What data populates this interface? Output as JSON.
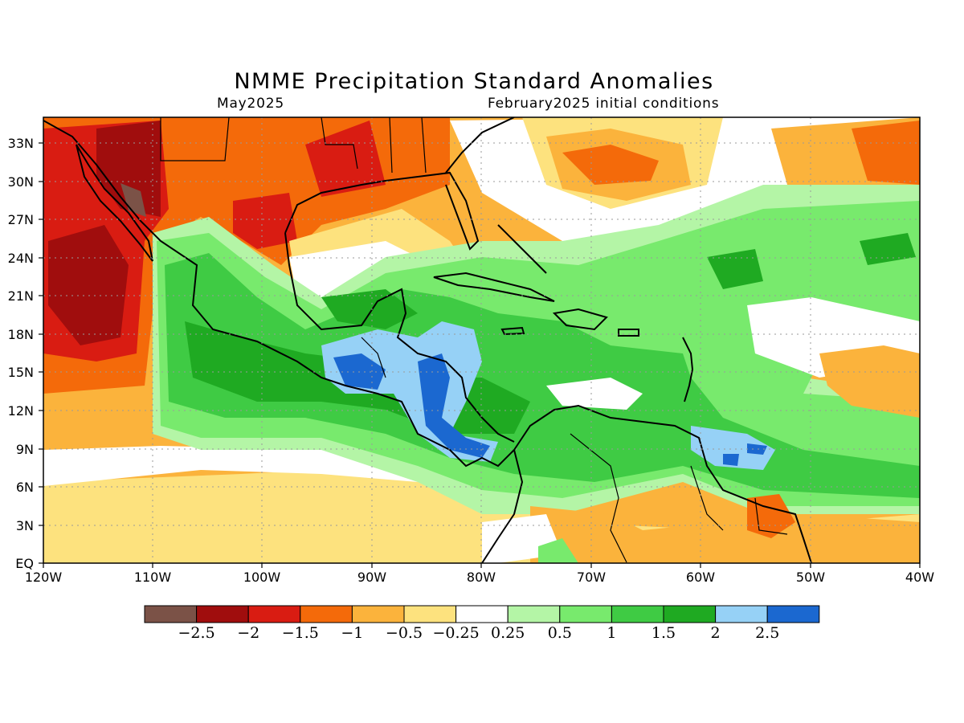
{
  "title": "NMME Precipitation Standard Anomalies",
  "subtitle_left": "May2025",
  "subtitle_right": "February2025 initial conditions",
  "lon_ticks": [
    "120W",
    "110W",
    "100W",
    "90W",
    "80W",
    "70W",
    "60W",
    "50W",
    "40W"
  ],
  "lat_ticks": [
    "EQ",
    "3N",
    "6N",
    "9N",
    "12N",
    "15N",
    "18N",
    "21N",
    "24N",
    "27N",
    "30N",
    "33N"
  ],
  "lon_range": [
    -120,
    -40
  ],
  "lat_range": [
    0,
    35
  ],
  "colorbar": {
    "colors": [
      "#7b5247",
      "#a00d0d",
      "#d91c12",
      "#f46a0a",
      "#fbb33c",
      "#fde27e",
      "#ffffff",
      "#b4f5a6",
      "#78ea6d",
      "#3fcb44",
      "#1faa22",
      "#96d1f6",
      "#1b68d0"
    ],
    "labels": [
      "−2.5",
      "−2",
      "−1.5",
      "−1",
      "−0.5",
      "−0.25",
      "0.25",
      "0.5",
      "1",
      "1.5",
      "2",
      "2.5"
    ]
  },
  "regions": {
    "dry_orange": "#f46a0a",
    "dry_light": "#fbb33c",
    "dry_pale": "#fde27e",
    "dry_red": "#d91c12",
    "dry_darkred": "#a00d0d",
    "dry_brown": "#7b5247",
    "wet_pale": "#b4f5a6",
    "wet_light": "#78ea6d",
    "wet_mid": "#3fcb44",
    "wet_dark": "#1faa22",
    "wet_blue_light": "#96d1f6",
    "wet_blue": "#1b68d0"
  }
}
